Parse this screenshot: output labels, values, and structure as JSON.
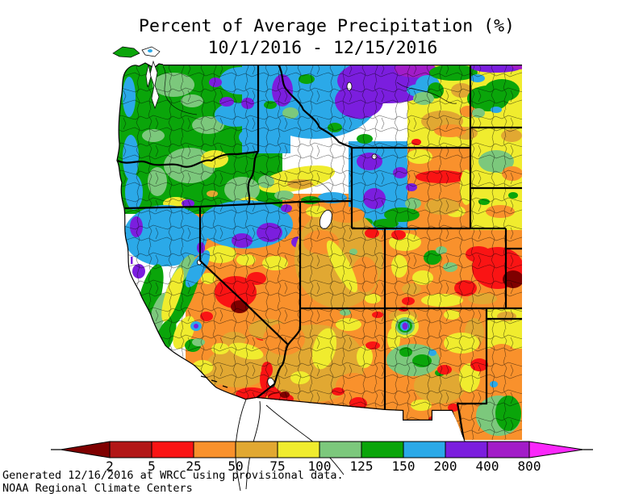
{
  "title": {
    "line1": "Percent of Average Precipitation (%)",
    "line2": "10/1/2016 - 12/15/2016"
  },
  "footer": {
    "line1": "Generated 12/16/2016 at WRCC using provisional data.",
    "line2": "NOAA Regional Climate Centers"
  },
  "chart_data": {
    "type": "choropleth_map",
    "title": "Percent of Average Precipitation (%)",
    "date_range": {
      "start": "10/1/2016",
      "end": "12/15/2016"
    },
    "region": "Western United States (WA, OR, CA, ID, NV, MT, WY, UT, CO, AZ, NM + western Plains edge)",
    "variable": "Percent of average precipitation (%)",
    "source_note": "Generated 12/16/2016 at WRCC using provisional data.",
    "organization": "NOAA Regional Climate Centers",
    "legend": {
      "units": "% of average",
      "breakpoints": [
        2,
        5,
        25,
        50,
        75,
        100,
        125,
        150,
        200,
        400,
        800
      ],
      "segment_colors": [
        "#7F0000",
        "#B21717",
        "#FA1414",
        "#F9912C",
        "#E1A832",
        "#F0EC2E",
        "#7CC87C",
        "#0AA50A",
        "#2BA9E8",
        "#7B1EDE",
        "#A21CC8",
        "#FA28FA"
      ],
      "segment_ranges": [
        "<2",
        "2-5",
        "5-25",
        "25-50",
        "50-75",
        "75-100",
        "100-125",
        "125-150",
        "150-200",
        "200-400",
        "400-800",
        ">800"
      ],
      "shape": "horizontal bar with pointed arrow ends",
      "position": "bottom"
    },
    "regional_summary": [
      {
        "area": "Washington",
        "percent_of_average": "125-200, pockets 200-400"
      },
      {
        "area": "Oregon",
        "percent_of_average": "100-200 west, 75-100 pockets central, 150-400 southeast"
      },
      {
        "area": "Northern California",
        "percent_of_average": "150-200 coast, spots 200-400"
      },
      {
        "area": "Central California",
        "percent_of_average": "75-125 valley, 100-200 Sierra"
      },
      {
        "area": "Southern California",
        "percent_of_average": "25-75, pockets 2-25 near border"
      },
      {
        "area": "Nevada",
        "percent_of_average": "25-75, pockets 2-25 central; 150-400 far north"
      },
      {
        "area": "Idaho",
        "percent_of_average": "150-400 north, 75-125 Snake River Plain"
      },
      {
        "area": "Montana",
        "percent_of_average": "200-800 west, 50-125 east"
      },
      {
        "area": "Wyoming",
        "percent_of_average": "150-400 northwest, 25-75 center-east"
      },
      {
        "area": "Utah",
        "percent_of_average": "25-75 with 75-100 bands"
      },
      {
        "area": "Colorado",
        "percent_of_average": "50-100 west, 2-25 eastern plains"
      },
      {
        "area": "Arizona",
        "percent_of_average": "25-75, 5-25 along Mexico border"
      },
      {
        "area": "New Mexico",
        "percent_of_average": "25-75, isolated 100-400 bullseye northwest-center, 100-150 southeast"
      }
    ]
  }
}
